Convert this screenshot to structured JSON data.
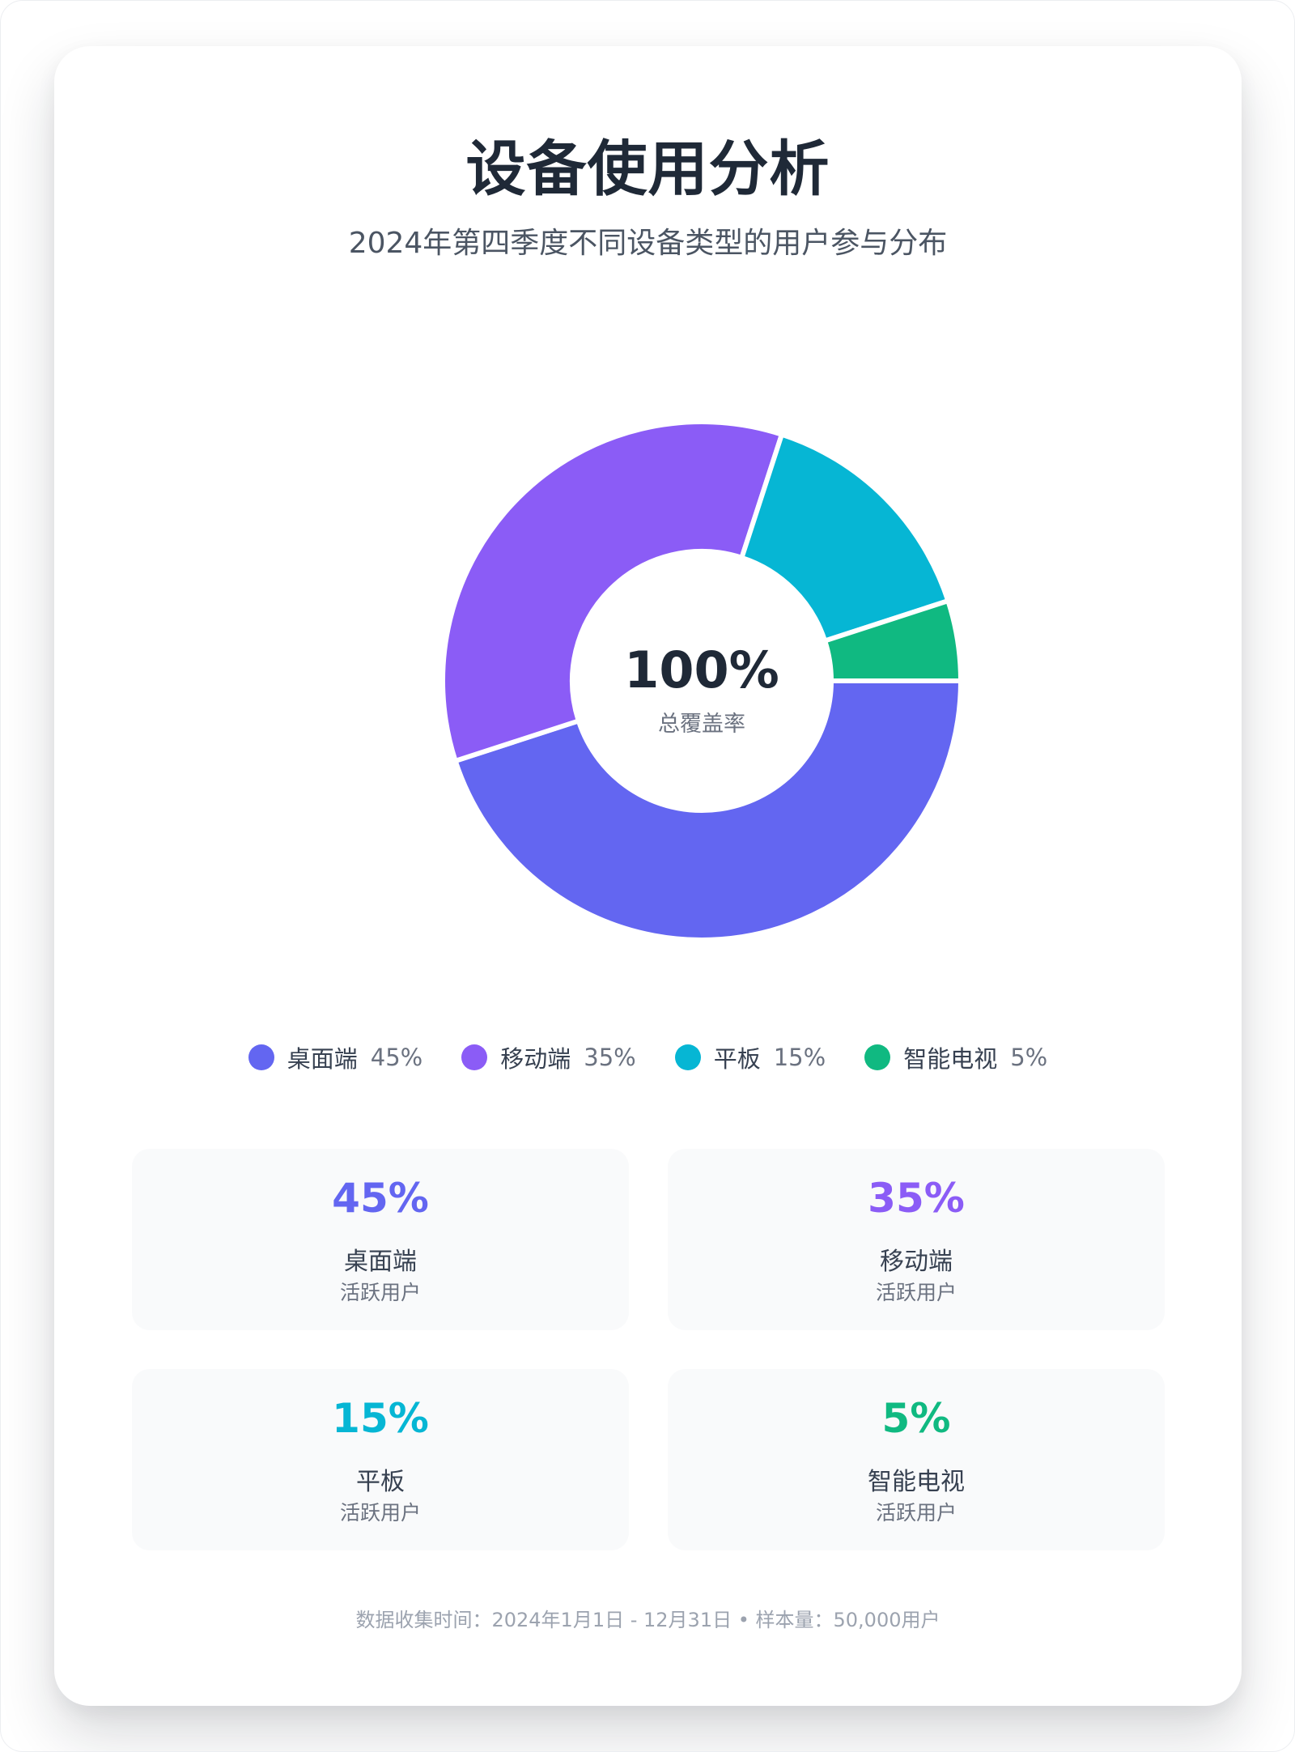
{
  "header": {
    "title": "设备使用分析",
    "subtitle": "2024年第四季度不同设备类型的用户参与分布"
  },
  "center": {
    "value": "100%",
    "label": "总覆盖率"
  },
  "chart_data": {
    "type": "pie",
    "categories": [
      "桌面端",
      "移动端",
      "平板",
      "智能电视"
    ],
    "values": [
      45,
      35,
      15,
      5
    ],
    "value_labels": [
      "45%",
      "35%",
      "15%",
      "5%"
    ],
    "colors": [
      "#6366f1",
      "#8b5cf6",
      "#06b6d4",
      "#10b981"
    ],
    "title": "设备使用分析",
    "legend_position": "bottom"
  },
  "stats": [
    {
      "value": "45%",
      "name": "桌面端",
      "desc": "活跃用户",
      "color": "#6366f1"
    },
    {
      "value": "35%",
      "name": "移动端",
      "desc": "活跃用户",
      "color": "#8b5cf6"
    },
    {
      "value": "15%",
      "name": "平板",
      "desc": "活跃用户",
      "color": "#06b6d4"
    },
    {
      "value": "5%",
      "name": "智能电视",
      "desc": "活跃用户",
      "color": "#10b981"
    }
  ],
  "footer": {
    "text": "数据收集时间：2024年1月1日 - 12月31日 • 样本量：50,000用户"
  }
}
